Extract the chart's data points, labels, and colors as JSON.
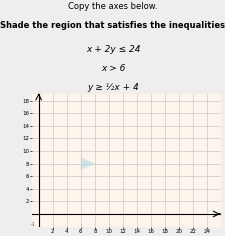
{
  "title_line1": "Copy the axes below.",
  "title_line2": "Shade the region that satisfies the inequalities",
  "ineq1": "x + 2y ≤ 24",
  "ineq2": "x > 6",
  "ineq3": "y ≥ ½x + 4",
  "xlim": [
    -1,
    26
  ],
  "ylim": [
    -2,
    19
  ],
  "xticks": [
    2,
    4,
    6,
    8,
    10,
    12,
    14,
    16,
    18,
    20,
    22,
    24
  ],
  "yticks": [
    2,
    4,
    6,
    8,
    10,
    12,
    14,
    16,
    18
  ],
  "grid_color": "#c8c8c8",
  "shade_color": "#add8e6",
  "shade_alpha": 0.55,
  "axes_bg_color": "#fdf5ec",
  "fig_bg_color": "#f0eeec",
  "figsize": [
    2.26,
    2.36
  ],
  "dpi": 100,
  "title1_fontsize": 6.0,
  "title2_fontsize": 6.0,
  "ineq_fontsize": 6.5,
  "tick_fontsize": 4.0
}
